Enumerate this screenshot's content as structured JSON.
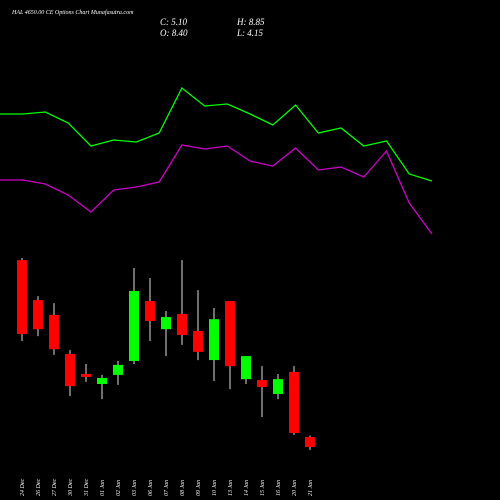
{
  "chart_data": [
    {
      "type": "line",
      "title": "HAL 4650.00 CE Options Chart Munafasutra.com",
      "info": {
        "close": "C: 5.10",
        "high": "H: 8.85",
        "open": "O: 8.40",
        "low": "L: 4.15"
      },
      "ylim": [
        0,
        200
      ],
      "series": [
        {
          "color": "#00ff00",
          "values": [
            136,
            136,
            138,
            127,
            104,
            110,
            108,
            117,
            162,
            144,
            146,
            136,
            125,
            145,
            117,
            122,
            104,
            109,
            76,
            69
          ]
        },
        {
          "color": "#cc00cc",
          "values": [
            70,
            70,
            66,
            55,
            38,
            60,
            63,
            68,
            105,
            101,
            104,
            89,
            84,
            102,
            80,
            83,
            73,
            99,
            47,
            16
          ]
        }
      ]
    },
    {
      "type": "candlestick",
      "up_color": "#00ff00",
      "down_color": "#ff0000",
      "ylim": [
        4.1,
        68.5
      ],
      "categories": [
        "24 Dec",
        "26 Dec",
        "27 Dec",
        "30 Dec",
        "31 Dec",
        "01 Jan",
        "02 Jan",
        "03 Jan",
        "06 Jan",
        "07 Jan",
        "08 Jan",
        "09 Jan",
        "10 Jan",
        "13 Jan",
        "14 Jan",
        "15 Jan",
        "16 Jan",
        "20 Jan",
        "21 Jan"
      ],
      "open": [
        66.8,
        53.6,
        48.7,
        35.8,
        29.2,
        25.9,
        28.9,
        33.5,
        53.3,
        44.0,
        49.0,
        43.4,
        33.8,
        53.3,
        27.5,
        27.2,
        22.6,
        29.9,
        8.4
      ],
      "high": [
        67.5,
        54.9,
        52.6,
        37.1,
        32.5,
        28.9,
        33.5,
        64.2,
        60.9,
        50.0,
        66.8,
        56.9,
        51.0,
        53.3,
        35.1,
        31.8,
        29.2,
        31.8,
        8.85
      ],
      "low": [
        40.1,
        41.7,
        35.5,
        21.9,
        26.6,
        20.9,
        25.6,
        32.5,
        40.1,
        35.1,
        38.8,
        33.8,
        26.9,
        24.2,
        25.9,
        15.0,
        20.9,
        9.1,
        4.15
      ],
      "close": [
        42.4,
        44.0,
        37.4,
        25.2,
        28.2,
        27.9,
        32.2,
        56.6,
        46.7,
        48.0,
        42.1,
        36.5,
        47.3,
        31.8,
        35.1,
        24.9,
        27.5,
        9.7,
        5.1
      ]
    }
  ]
}
